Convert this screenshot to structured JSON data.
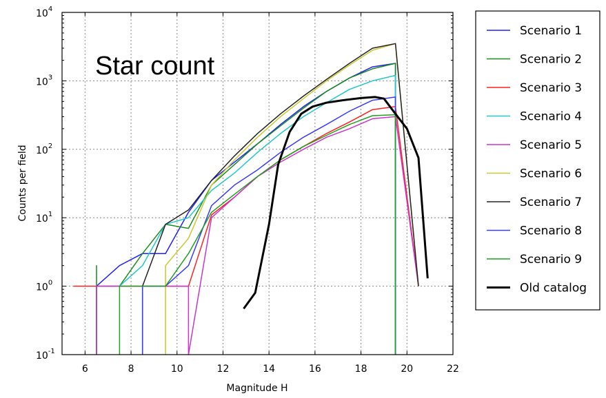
{
  "chart_data": {
    "type": "line",
    "title": "",
    "annotation": "Star count",
    "xlabel": "Magnitude H",
    "ylabel": "Counts per field",
    "xlim": [
      5,
      22
    ],
    "ylim": [
      0.1,
      10000
    ],
    "yscale": "log",
    "grid": true,
    "legend_position": "outside-right",
    "x_ticks": [
      "6",
      "8",
      "10",
      "12",
      "14",
      "16",
      "18",
      "20",
      "22"
    ],
    "y_ticks": [
      {
        "base": "10",
        "exp": "-1"
      },
      {
        "base": "10",
        "exp": "0"
      },
      {
        "base": "10",
        "exp": "1"
      },
      {
        "base": "10",
        "exp": "2"
      },
      {
        "base": "10",
        "exp": "3"
      },
      {
        "base": "10",
        "exp": "4"
      }
    ],
    "series": [
      {
        "name": "Scenario 1",
        "color": "#1f1fff",
        "width": 1.5,
        "x": [
          6.5,
          6.5,
          7.5,
          8.5,
          9.5,
          10.5,
          11.5,
          12.5,
          13.5,
          14.5,
          15.5,
          16.5,
          17.5,
          18.5,
          19.5,
          19.5
        ],
        "y": [
          0.1,
          1,
          2,
          3,
          3,
          12,
          35,
          65,
          120,
          230,
          420,
          700,
          1100,
          1600,
          1800,
          0.1
        ]
      },
      {
        "name": "Scenario 2",
        "color": "#1a8c1a",
        "width": 1.5,
        "x": [
          6.5,
          6.5,
          6.5,
          7.5,
          8.5,
          9.5,
          10.5,
          11.5,
          12.5,
          13.5,
          14.5,
          15.5,
          16.5,
          17.5,
          18.5,
          19.5,
          19.5
        ],
        "y": [
          0.1,
          2,
          1,
          1,
          3,
          8,
          7,
          30,
          60,
          120,
          220,
          400,
          700,
          1100,
          1500,
          1800,
          0.1
        ]
      },
      {
        "name": "Scenario 3",
        "color": "#ff2020",
        "width": 1.5,
        "x": [
          5.5,
          6.5,
          7.5,
          8.5,
          9.5,
          10.5,
          11.5,
          12.5,
          13.5,
          14.5,
          15.5,
          16.5,
          17.5,
          18.5,
          19.5,
          20.5
        ],
        "y": [
          1,
          1,
          1,
          1,
          1,
          1,
          11,
          20,
          40,
          70,
          110,
          170,
          250,
          380,
          420,
          1
        ]
      },
      {
        "name": "Scenario 4",
        "color": "#20c8c8",
        "width": 1.5,
        "x": [
          6.5,
          7.5,
          7.5,
          8.5,
          9.5,
          10.5,
          11.5,
          12.5,
          13.5,
          14.5,
          15.5,
          16.5,
          17.5,
          18.5,
          19.5,
          19.5
        ],
        "y": [
          1,
          1,
          1,
          2,
          8,
          10,
          25,
          45,
          90,
          170,
          300,
          480,
          750,
          1000,
          1200,
          0.1
        ]
      },
      {
        "name": "Scenario 5",
        "color": "#cc33cc",
        "width": 1.5,
        "x": [
          6.5,
          6.5,
          10.5,
          10.5,
          11.5,
          12.5,
          13.5,
          14.5,
          15.5,
          16.5,
          17.5,
          18.5,
          19.5,
          20.5
        ],
        "y": [
          0.1,
          1,
          1,
          0.1,
          10,
          20,
          40,
          65,
          100,
          150,
          200,
          280,
          300,
          1
        ]
      },
      {
        "name": "Scenario 6",
        "color": "#c8c830",
        "width": 1.5,
        "x": [
          9.5,
          9.5,
          10.5,
          11.5,
          12.5,
          13.5,
          14.5,
          15.5,
          16.5,
          17.5,
          18.5,
          19.5,
          20.5
        ],
        "y": [
          0.1,
          2,
          5,
          30,
          70,
          150,
          300,
          550,
          1000,
          1700,
          2800,
          3500,
          1
        ]
      },
      {
        "name": "Scenario 7",
        "color": "#222222",
        "width": 1.5,
        "x": [
          8.5,
          8.5,
          9.5,
          10.5,
          11.5,
          12.5,
          13.5,
          14.5,
          15.5,
          16.5,
          17.5,
          18.5,
          19.5,
          20.5
        ],
        "y": [
          0.1,
          1,
          8,
          13,
          35,
          80,
          170,
          330,
          600,
          1050,
          1800,
          3000,
          3500,
          1
        ]
      },
      {
        "name": "Scenario 8",
        "color": "#3a3aff",
        "width": 1.5,
        "x": [
          8.5,
          8.5,
          9.5,
          10.5,
          11.5,
          12.5,
          13.5,
          14.5,
          15.5,
          16.5,
          17.5,
          18.5,
          19.5,
          19.5
        ],
        "y": [
          0.1,
          1,
          1,
          2,
          15,
          30,
          50,
          90,
          150,
          230,
          360,
          520,
          580,
          0.1
        ]
      },
      {
        "name": "Scenario 9",
        "color": "#1fa01f",
        "width": 1.5,
        "x": [
          7.5,
          7.5,
          9.5,
          10.5,
          11.5,
          12.5,
          13.5,
          14.5,
          15.5,
          16.5,
          17.5,
          18.5,
          19.5,
          19.5
        ],
        "y": [
          0.1,
          1,
          1,
          3,
          12,
          22,
          40,
          70,
          110,
          160,
          230,
          310,
          320,
          0.1
        ]
      },
      {
        "name": "Old catalog",
        "color": "#000000",
        "width": 3,
        "x": [
          12.9,
          13.4,
          14.0,
          14.4,
          14.9,
          15.4,
          15.9,
          16.5,
          17.2,
          18.0,
          18.6,
          19.0,
          19.5,
          20.0,
          20.5,
          20.9
        ],
        "y": [
          0.47,
          0.8,
          8,
          60,
          180,
          330,
          420,
          480,
          520,
          560,
          580,
          550,
          330,
          200,
          75,
          1.3
        ]
      }
    ]
  }
}
